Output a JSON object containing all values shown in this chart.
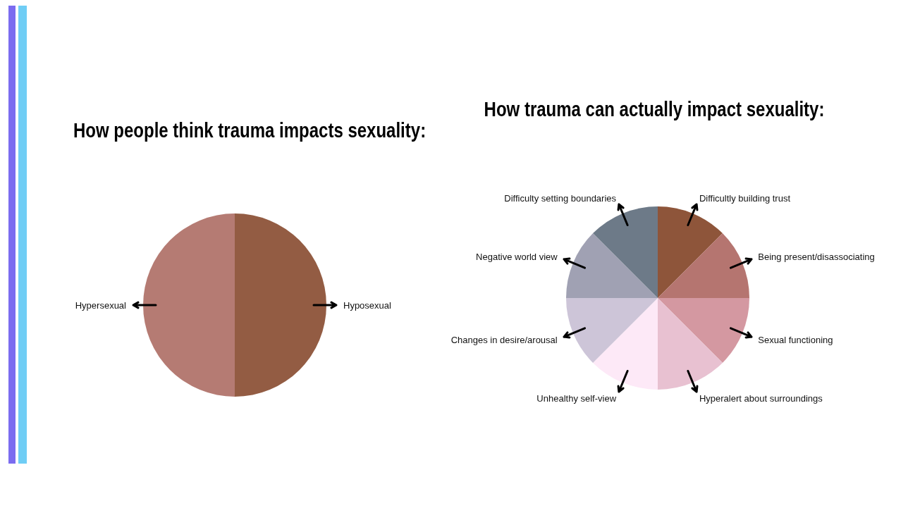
{
  "chart_data": [
    {
      "type": "pie",
      "title": "How people think trauma impacts sexuality:",
      "categories": [
        "Hyposexual",
        "Hypersexual"
      ],
      "values": [
        50,
        50
      ],
      "colors": [
        "#935c43",
        "#b57b73"
      ],
      "legend": false
    },
    {
      "type": "pie",
      "title": "How trauma can actually impact sexuality:",
      "categories": [
        "Difficultly building trust",
        "Being present/disassociating",
        "Sexual functioning",
        "Hyperalert about surroundings",
        "Unhealthy self-view",
        "Changes in desire/arousal",
        "Negative world view",
        "Difficulty setting boundaries"
      ],
      "values": [
        12.5,
        12.5,
        12.5,
        12.5,
        12.5,
        12.5,
        12.5,
        12.5
      ],
      "colors": [
        "#8e553a",
        "#b57570",
        "#d498a1",
        "#e8c1d1",
        "#fde9f7",
        "#cdc5d8",
        "#a0a1b3",
        "#6d7a88"
      ],
      "legend": false
    }
  ]
}
